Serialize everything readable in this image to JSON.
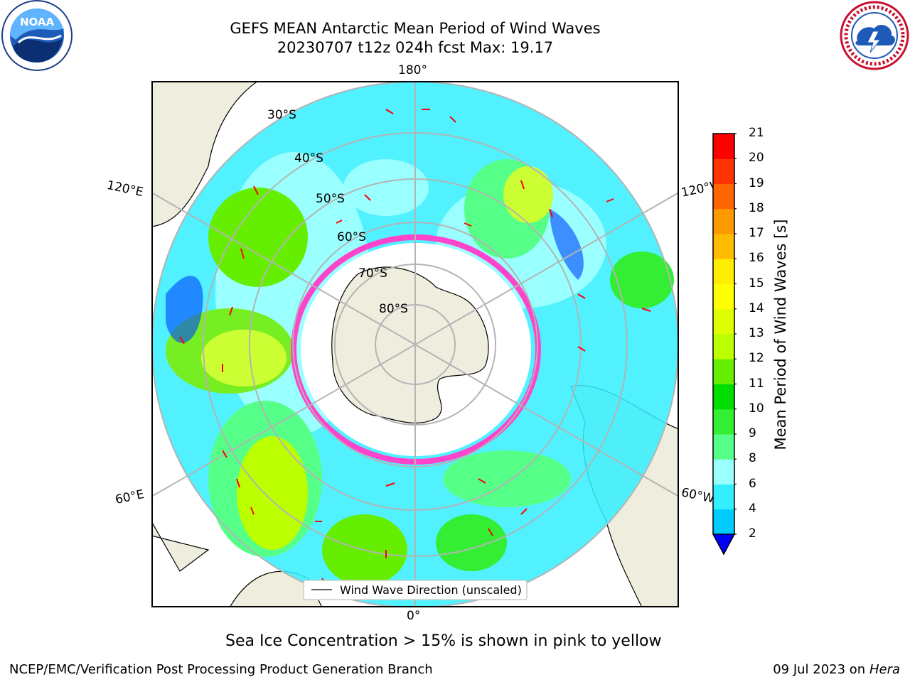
{
  "header": {
    "title_line1": "GEFS MEAN Antarctic Mean Period of Wind Waves",
    "title_line2": "20230707 t12z 024h fcst   Max: 19.17"
  },
  "logos": {
    "left_text": "NOAA",
    "left_ring_text": "NATIONAL OCEANIC AND ATMOSPHERIC ADMINISTRATION · U.S. DEPARTMENT OF COMMERCE",
    "right_ring_text": "NATIONAL WEATHER SERVICE"
  },
  "map": {
    "lon_labels": {
      "top": "180°",
      "bottom": "0°",
      "left_upper": "120°E",
      "left_lower": "60°E",
      "right_upper": "120°W",
      "right_lower": "60°W"
    },
    "lat_labels": [
      "30°S",
      "40°S",
      "50°S",
      "60°S",
      "70°S",
      "80°S"
    ],
    "legend_label": "Wind Wave Direction (unscaled)",
    "colors": {
      "land": "#efedde",
      "ocean_bg": "#ffffff",
      "arrows": "#ff0000",
      "ice_edge": "#ff44cc",
      "grid": "#b4b4b4"
    }
  },
  "colorbar": {
    "label": "Mean Period of Wind Waves [s]",
    "ticks": [
      "2",
      "4",
      "6",
      "8",
      "9",
      "10",
      "11",
      "12",
      "13",
      "14",
      "15",
      "16",
      "17",
      "18",
      "19",
      "20",
      "21"
    ],
    "colors": [
      "#0066ff",
      "#00ccff",
      "#33eeff",
      "#99ffff",
      "#55ff88",
      "#33ee33",
      "#00dd00",
      "#66ee00",
      "#bbff00",
      "#ddff00",
      "#ffff00",
      "#ffee00",
      "#ffbb00",
      "#ff9900",
      "#ff6600",
      "#ff3300",
      "#ff0000"
    ],
    "under_color": "#0000ff"
  },
  "footer": {
    "note": "Sea Ice Concentration > 15% is shown in pink to yellow",
    "credit": "NCEP/EMC/Verification Post Processing Product Generation Branch",
    "date": "09 Jul 2023 on ",
    "host": "Hera"
  }
}
